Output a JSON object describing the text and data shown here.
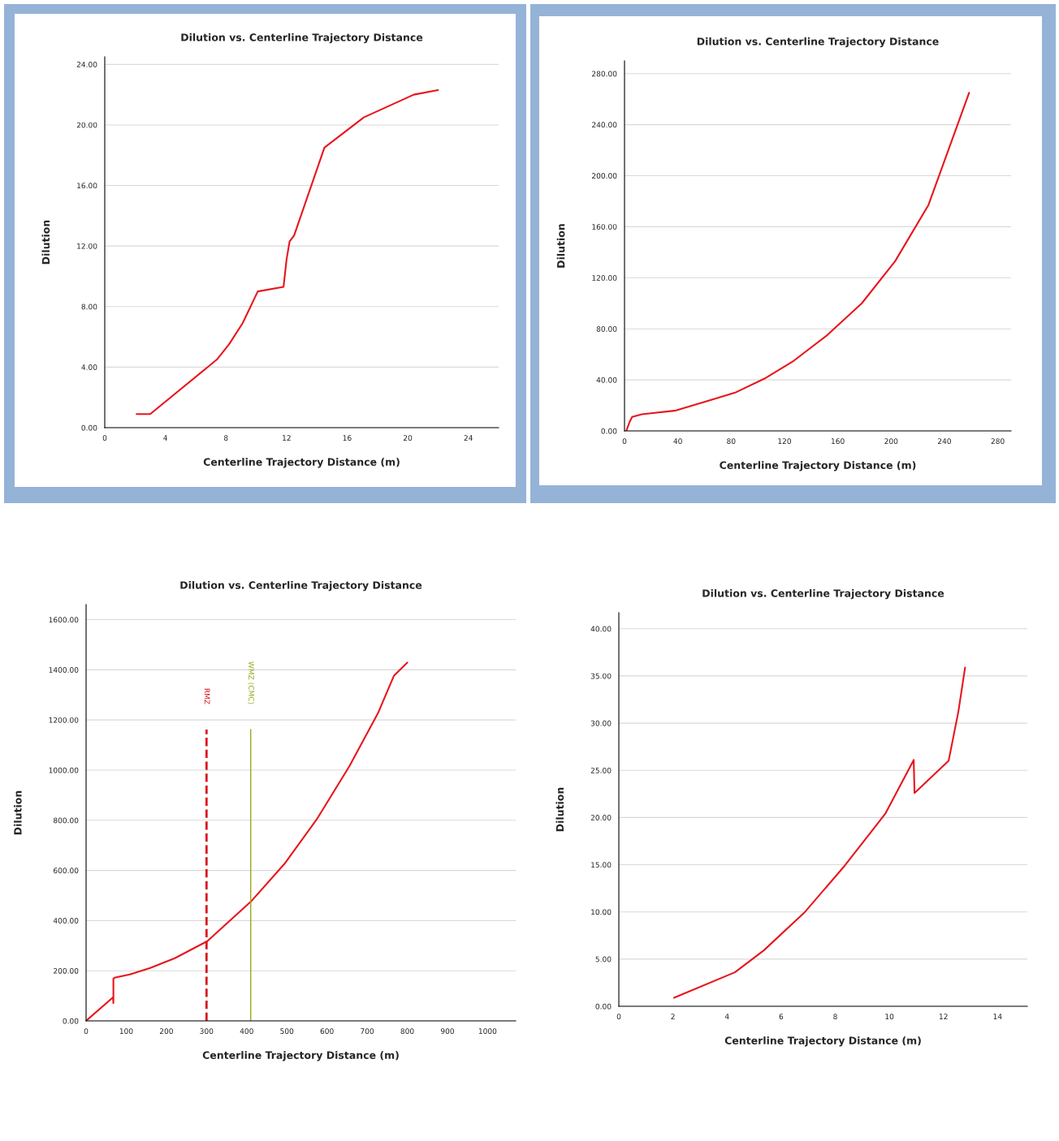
{
  "chart_data": [
    {
      "type": "line",
      "title": "Dilution vs. Centerline Trajectory Distance",
      "xlabel": "Centerline Trajectory Distance (m)",
      "ylabel": "Dilution",
      "grid": "y",
      "xlim": [
        0,
        26
      ],
      "ylim": [
        0,
        24.5
      ],
      "xticks": [
        0,
        4,
        8,
        12,
        16,
        20,
        24
      ],
      "yticks": [
        {
          "value": 0,
          "label": "0.00"
        },
        {
          "value": 4,
          "label": "4.00"
        },
        {
          "value": 8,
          "label": "8.00"
        },
        {
          "value": 12,
          "label": "12.00"
        },
        {
          "value": 16,
          "label": "16.00"
        },
        {
          "value": 20,
          "label": "20.00"
        },
        {
          "value": 24,
          "label": "24.00"
        }
      ],
      "series": [
        {
          "color": "#e8141c",
          "x": [
            2.1,
            3.0,
            7.4,
            8.2,
            9.1,
            10.1,
            11.8,
            12.0,
            12.2,
            12.5,
            14.5,
            17.1,
            20.4,
            22.0
          ],
          "values": [
            0.9,
            0.9,
            4.5,
            5.5,
            6.9,
            9.0,
            9.3,
            11.1,
            12.3,
            12.7,
            18.5,
            20.5,
            22.0,
            22.3
          ]
        }
      ]
    },
    {
      "type": "line",
      "title": "Dilution vs. Centerline Trajectory Distance",
      "xlabel": "Centerline Trajectory Distance (m)",
      "ylabel": "Dilution",
      "grid": "y",
      "xlim": [
        0,
        290
      ],
      "ylim": [
        0,
        290
      ],
      "xticks": [
        0,
        40,
        80,
        120,
        160,
        200,
        240,
        280
      ],
      "yticks": [
        {
          "value": 0,
          "label": "0.00"
        },
        {
          "value": 40,
          "label": "40.00"
        },
        {
          "value": 80,
          "label": "80.00"
        },
        {
          "value": 120,
          "label": "120.00"
        },
        {
          "value": 160,
          "label": "160.00"
        },
        {
          "value": 200,
          "label": "200.00"
        },
        {
          "value": 240,
          "label": "240.00"
        },
        {
          "value": 280,
          "label": "280.00"
        }
      ],
      "series": [
        {
          "color": "#e8141c",
          "x": [
            1.3,
            3.8,
            5.7,
            13,
            38.6,
            64,
            83,
            105,
            127,
            152,
            178,
            203,
            228,
            258.5
          ],
          "values": [
            0,
            7,
            11,
            13,
            16,
            24,
            30,
            41,
            55,
            75,
            100,
            133,
            177,
            265
          ]
        }
      ]
    },
    {
      "type": "line",
      "title": "Dilution vs. Centerline Trajectory Distance",
      "xlabel": "Centerline Trajectory Distance (m)",
      "ylabel": "Dilution",
      "grid": "y",
      "xlim": [
        0,
        1070
      ],
      "ylim": [
        0,
        1660
      ],
      "xticks": [
        0,
        100,
        200,
        300,
        400,
        500,
        600,
        700,
        800,
        900,
        1000
      ],
      "yticks": [
        {
          "value": 0,
          "label": "0.00"
        },
        {
          "value": 200,
          "label": "200.00"
        },
        {
          "value": 400,
          "label": "400.00"
        },
        {
          "value": 600,
          "label": "600.00"
        },
        {
          "value": 800,
          "label": "800.00"
        },
        {
          "value": 1000,
          "label": "1000.00"
        },
        {
          "value": 1200,
          "label": "1200.00"
        },
        {
          "value": 1400,
          "label": "1400.00"
        },
        {
          "value": 1600,
          "label": "1600.00"
        }
      ],
      "series": [
        {
          "color": "#e8141c",
          "x": [
            0,
            67,
            68,
            68,
            71,
            109,
            160,
            221,
            302,
            413,
            494,
            575,
            656,
            727,
            767,
            800
          ],
          "values": [
            0,
            94,
            71,
            169,
            172,
            185,
            211,
            250,
            318,
            480,
            626,
            805,
            1016,
            1227,
            1377,
            1429
          ]
        }
      ],
      "ref_lines": [
        {
          "axis": "x",
          "value": 300,
          "label": "RMZ",
          "color": "#d9181e",
          "line_style": "dashed"
        },
        {
          "axis": "x",
          "value": 410,
          "label": "WMZ (CMC)",
          "color": "#9aa81c",
          "line_style": "solid"
        }
      ]
    },
    {
      "type": "line",
      "title": "Dilution vs. Centerline Trajectory Distance",
      "xlabel": "Centerline Trajectory Distance (m)",
      "ylabel": "Dilution",
      "grid": "y",
      "xlim": [
        0,
        15.1
      ],
      "ylim": [
        0,
        41.7
      ],
      "xticks": [
        0,
        2,
        4,
        6,
        8,
        10,
        12,
        14
      ],
      "yticks": [
        {
          "value": 0,
          "label": "0.00"
        },
        {
          "value": 5,
          "label": "5.00"
        },
        {
          "value": 10,
          "label": "10.00"
        },
        {
          "value": 15,
          "label": "15.00"
        },
        {
          "value": 20,
          "label": "20.00"
        },
        {
          "value": 25,
          "label": "25.00"
        },
        {
          "value": 30,
          "label": "30.00"
        },
        {
          "value": 35,
          "label": "35.00"
        },
        {
          "value": 40,
          "label": "40.00"
        }
      ],
      "series": [
        {
          "color": "#e8141c",
          "x": [
            2.04,
            4.29,
            5.35,
            6.85,
            8.35,
            9.85,
            10.9,
            10.93,
            12.19,
            12.55,
            12.8
          ],
          "values": [
            0.9,
            3.6,
            5.9,
            9.9,
            14.9,
            20.4,
            26.1,
            22.6,
            26.0,
            31.2,
            35.9
          ]
        }
      ]
    }
  ]
}
